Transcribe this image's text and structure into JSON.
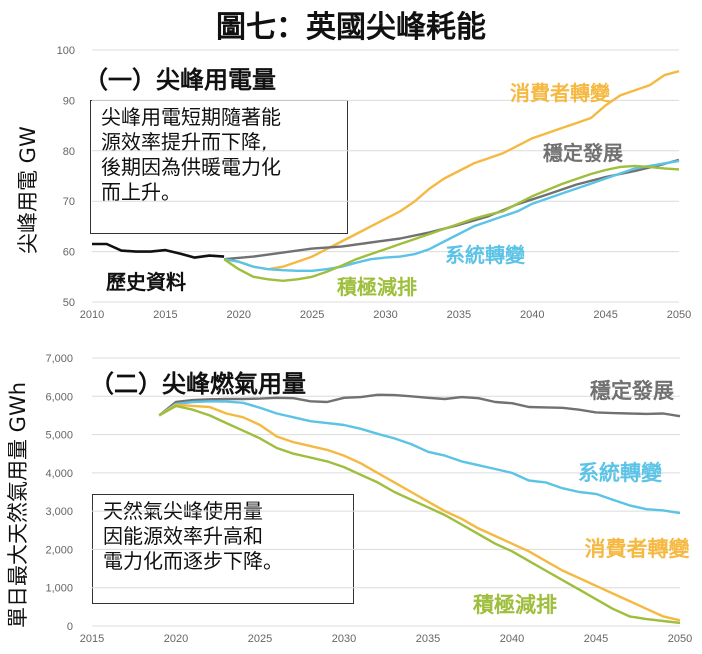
{
  "title": "圖七：英國尖峰耗能",
  "colors": {
    "consumer": "#F5B942",
    "steady": "#717171",
    "system": "#5BC3E6",
    "leading": "#9EBE3C",
    "history": "#111111",
    "grid": "#DCDCDC"
  },
  "chart_data": [
    {
      "type": "line",
      "panel_title": "（一）尖峰用電量",
      "ylabel": "尖峰用電  GW",
      "xlim": [
        2010,
        2050
      ],
      "ylim": [
        50,
        100
      ],
      "xticks": [
        "2010",
        "2015",
        "2020",
        "2025",
        "2030",
        "2035",
        "2040",
        "2045",
        "2050"
      ],
      "yticks": [
        "50",
        "60",
        "70",
        "80",
        "90",
        "100"
      ],
      "grid": "horizontal",
      "note_lines": [
        "尖峰用電短期隨著能",
        "源效率提升而下降,",
        "後期因為供暖電力化",
        "而上升。"
      ],
      "series": [
        {
          "name": "歷史資料",
          "color_key": "history",
          "x": [
            2010,
            2011,
            2012,
            2013,
            2014,
            2015,
            2016,
            2017,
            2018,
            2019
          ],
          "y": [
            61.5,
            61.5,
            60.2,
            60.0,
            60.0,
            60.3,
            59.6,
            58.8,
            59.2,
            59.0
          ]
        },
        {
          "name": "消費者轉變",
          "color_key": "consumer",
          "x": [
            2019,
            2020,
            2021,
            2022,
            2023,
            2024,
            2025,
            2026,
            2027,
            2028,
            2029,
            2030,
            2031,
            2032,
            2033,
            2034,
            2035,
            2036,
            2037,
            2038,
            2039,
            2040,
            2041,
            2042,
            2043,
            2044,
            2045,
            2046,
            2047,
            2048,
            2049,
            2050
          ],
          "y": [
            58.5,
            58.0,
            57.0,
            56.5,
            57.0,
            58.0,
            59.0,
            60.5,
            62.0,
            63.5,
            65.0,
            66.5,
            68.0,
            70.0,
            72.5,
            74.5,
            76.0,
            77.5,
            78.5,
            79.5,
            81.0,
            82.5,
            83.5,
            84.5,
            85.5,
            86.5,
            89.0,
            91.0,
            92.0,
            93.0,
            95.0,
            95.8
          ]
        },
        {
          "name": "穩定發展",
          "color_key": "steady",
          "x": [
            2019,
            2021,
            2023,
            2025,
            2027,
            2029,
            2031,
            2033,
            2035,
            2037,
            2039,
            2041,
            2043,
            2045,
            2047,
            2049,
            2050
          ],
          "y": [
            58.5,
            59.0,
            59.8,
            60.6,
            61.0,
            61.8,
            62.6,
            63.8,
            65.3,
            67.0,
            69.4,
            71.3,
            73.3,
            74.8,
            76.0,
            77.4,
            78.2
          ]
        },
        {
          "name": "系統轉變",
          "color_key": "system",
          "x": [
            2019,
            2020,
            2021,
            2022,
            2023,
            2024,
            2025,
            2026,
            2027,
            2028,
            2029,
            2030,
            2031,
            2032,
            2033,
            2034,
            2035,
            2036,
            2037,
            2038,
            2039,
            2040,
            2041,
            2042,
            2043,
            2044,
            2045,
            2046,
            2047,
            2048,
            2049,
            2050
          ],
          "y": [
            58.5,
            58.0,
            57.0,
            56.5,
            56.3,
            56.2,
            56.2,
            56.5,
            57.0,
            57.8,
            58.5,
            58.8,
            59.0,
            59.5,
            60.5,
            62.0,
            63.5,
            65.0,
            66.0,
            67.0,
            68.0,
            69.5,
            70.5,
            71.5,
            72.5,
            73.5,
            74.5,
            75.5,
            76.5,
            77.0,
            77.5,
            78.0
          ]
        },
        {
          "name": "積極減排",
          "color_key": "leading",
          "x": [
            2019,
            2020,
            2021,
            2022,
            2023,
            2024,
            2025,
            2026,
            2027,
            2028,
            2029,
            2030,
            2031,
            2032,
            2033,
            2034,
            2035,
            2036,
            2037,
            2038,
            2039,
            2040,
            2041,
            2042,
            2043,
            2044,
            2045,
            2046,
            2047,
            2048,
            2049,
            2050
          ],
          "y": [
            58.5,
            56.5,
            55.0,
            54.5,
            54.2,
            54.5,
            55.0,
            56.0,
            57.2,
            58.5,
            59.5,
            60.5,
            61.5,
            62.5,
            63.5,
            64.5,
            65.5,
            66.5,
            67.3,
            68.0,
            69.5,
            71.0,
            72.2,
            73.4,
            74.4,
            75.4,
            76.2,
            76.8,
            77.0,
            76.8,
            76.5,
            76.3
          ]
        }
      ],
      "labels": [
        {
          "text": "消費者轉變",
          "color_key": "consumer"
        },
        {
          "text": "穩定發展",
          "color_key": "steady"
        },
        {
          "text": "系統轉變",
          "color_key": "system"
        },
        {
          "text": "積極減排",
          "color_key": "leading"
        },
        {
          "text": "歷史資料",
          "color_key": "history"
        }
      ]
    },
    {
      "type": "line",
      "panel_title": "（二）尖峰燃氣用量",
      "ylabel": "單日最大天然氣用量  GWh",
      "xlim": [
        2015,
        2050
      ],
      "ylim": [
        0,
        7000
      ],
      "xticks": [
        "2015",
        "2020",
        "2025",
        "2030",
        "2035",
        "2040",
        "2045",
        "2050"
      ],
      "yticks": [
        "0",
        "1,000",
        "2,000",
        "3,000",
        "4,000",
        "5,000",
        "6,000",
        "7,000"
      ],
      "grid": "horizontal",
      "note_lines": [
        "天然氣尖峰使用量",
        "因能源效率升高和",
        "電力化而逐步下降。"
      ],
      "series": [
        {
          "name": "穩定發展",
          "color_key": "steady",
          "x": [
            2019,
            2020,
            2021,
            2022,
            2023,
            2024,
            2025,
            2026,
            2027,
            2028,
            2029,
            2030,
            2031,
            2032,
            2033,
            2034,
            2035,
            2036,
            2037,
            2038,
            2039,
            2040,
            2041,
            2042,
            2043,
            2044,
            2045,
            2046,
            2047,
            2048,
            2049,
            2050
          ],
          "y": [
            5500,
            5850,
            5900,
            5920,
            5930,
            5930,
            5940,
            5960,
            5950,
            5870,
            5850,
            5960,
            5980,
            6040,
            6030,
            6000,
            5960,
            5930,
            5980,
            5950,
            5850,
            5820,
            5720,
            5710,
            5700,
            5650,
            5580,
            5560,
            5550,
            5540,
            5550,
            5480
          ]
        },
        {
          "name": "系統轉變",
          "color_key": "system",
          "x": [
            2019,
            2020,
            2021,
            2022,
            2023,
            2024,
            2025,
            2026,
            2027,
            2028,
            2029,
            2030,
            2031,
            2032,
            2033,
            2034,
            2035,
            2036,
            2037,
            2038,
            2039,
            2040,
            2041,
            2042,
            2043,
            2044,
            2045,
            2046,
            2047,
            2048,
            2049,
            2050
          ],
          "y": [
            5500,
            5800,
            5850,
            5870,
            5860,
            5830,
            5700,
            5550,
            5450,
            5350,
            5300,
            5250,
            5150,
            5020,
            4900,
            4750,
            4550,
            4450,
            4300,
            4200,
            4100,
            4000,
            3800,
            3750,
            3600,
            3500,
            3450,
            3300,
            3150,
            3050,
            3020,
            2950
          ]
        },
        {
          "name": "消費者轉變",
          "color_key": "consumer",
          "x": [
            2019,
            2020,
            2021,
            2022,
            2023,
            2024,
            2025,
            2026,
            2027,
            2028,
            2029,
            2030,
            2031,
            2032,
            2033,
            2034,
            2035,
            2036,
            2037,
            2038,
            2039,
            2040,
            2041,
            2042,
            2043,
            2044,
            2045,
            2046,
            2047,
            2048,
            2049,
            2050
          ],
          "y": [
            5500,
            5780,
            5750,
            5720,
            5550,
            5450,
            5250,
            4950,
            4800,
            4700,
            4600,
            4450,
            4250,
            4000,
            3750,
            3500,
            3250,
            3000,
            2800,
            2550,
            2350,
            2150,
            1950,
            1700,
            1450,
            1250,
            1050,
            850,
            650,
            450,
            250,
            150
          ]
        },
        {
          "name": "積極減排",
          "color_key": "leading",
          "x": [
            2019,
            2020,
            2021,
            2022,
            2023,
            2024,
            2025,
            2026,
            2027,
            2028,
            2029,
            2030,
            2031,
            2032,
            2033,
            2034,
            2035,
            2036,
            2037,
            2038,
            2039,
            2040,
            2041,
            2042,
            2043,
            2044,
            2045,
            2046,
            2047,
            2048,
            2049,
            2050
          ],
          "y": [
            5500,
            5750,
            5650,
            5500,
            5300,
            5100,
            4900,
            4650,
            4500,
            4400,
            4300,
            4150,
            3950,
            3750,
            3500,
            3300,
            3100,
            2900,
            2650,
            2400,
            2150,
            1950,
            1700,
            1450,
            1200,
            950,
            700,
            450,
            250,
            180,
            130,
            80
          ]
        }
      ],
      "labels": [
        {
          "text": "穩定發展",
          "color_key": "steady"
        },
        {
          "text": "系統轉變",
          "color_key": "system"
        },
        {
          "text": "消費者轉變",
          "color_key": "consumer"
        },
        {
          "text": "積極減排",
          "color_key": "leading"
        }
      ]
    }
  ]
}
